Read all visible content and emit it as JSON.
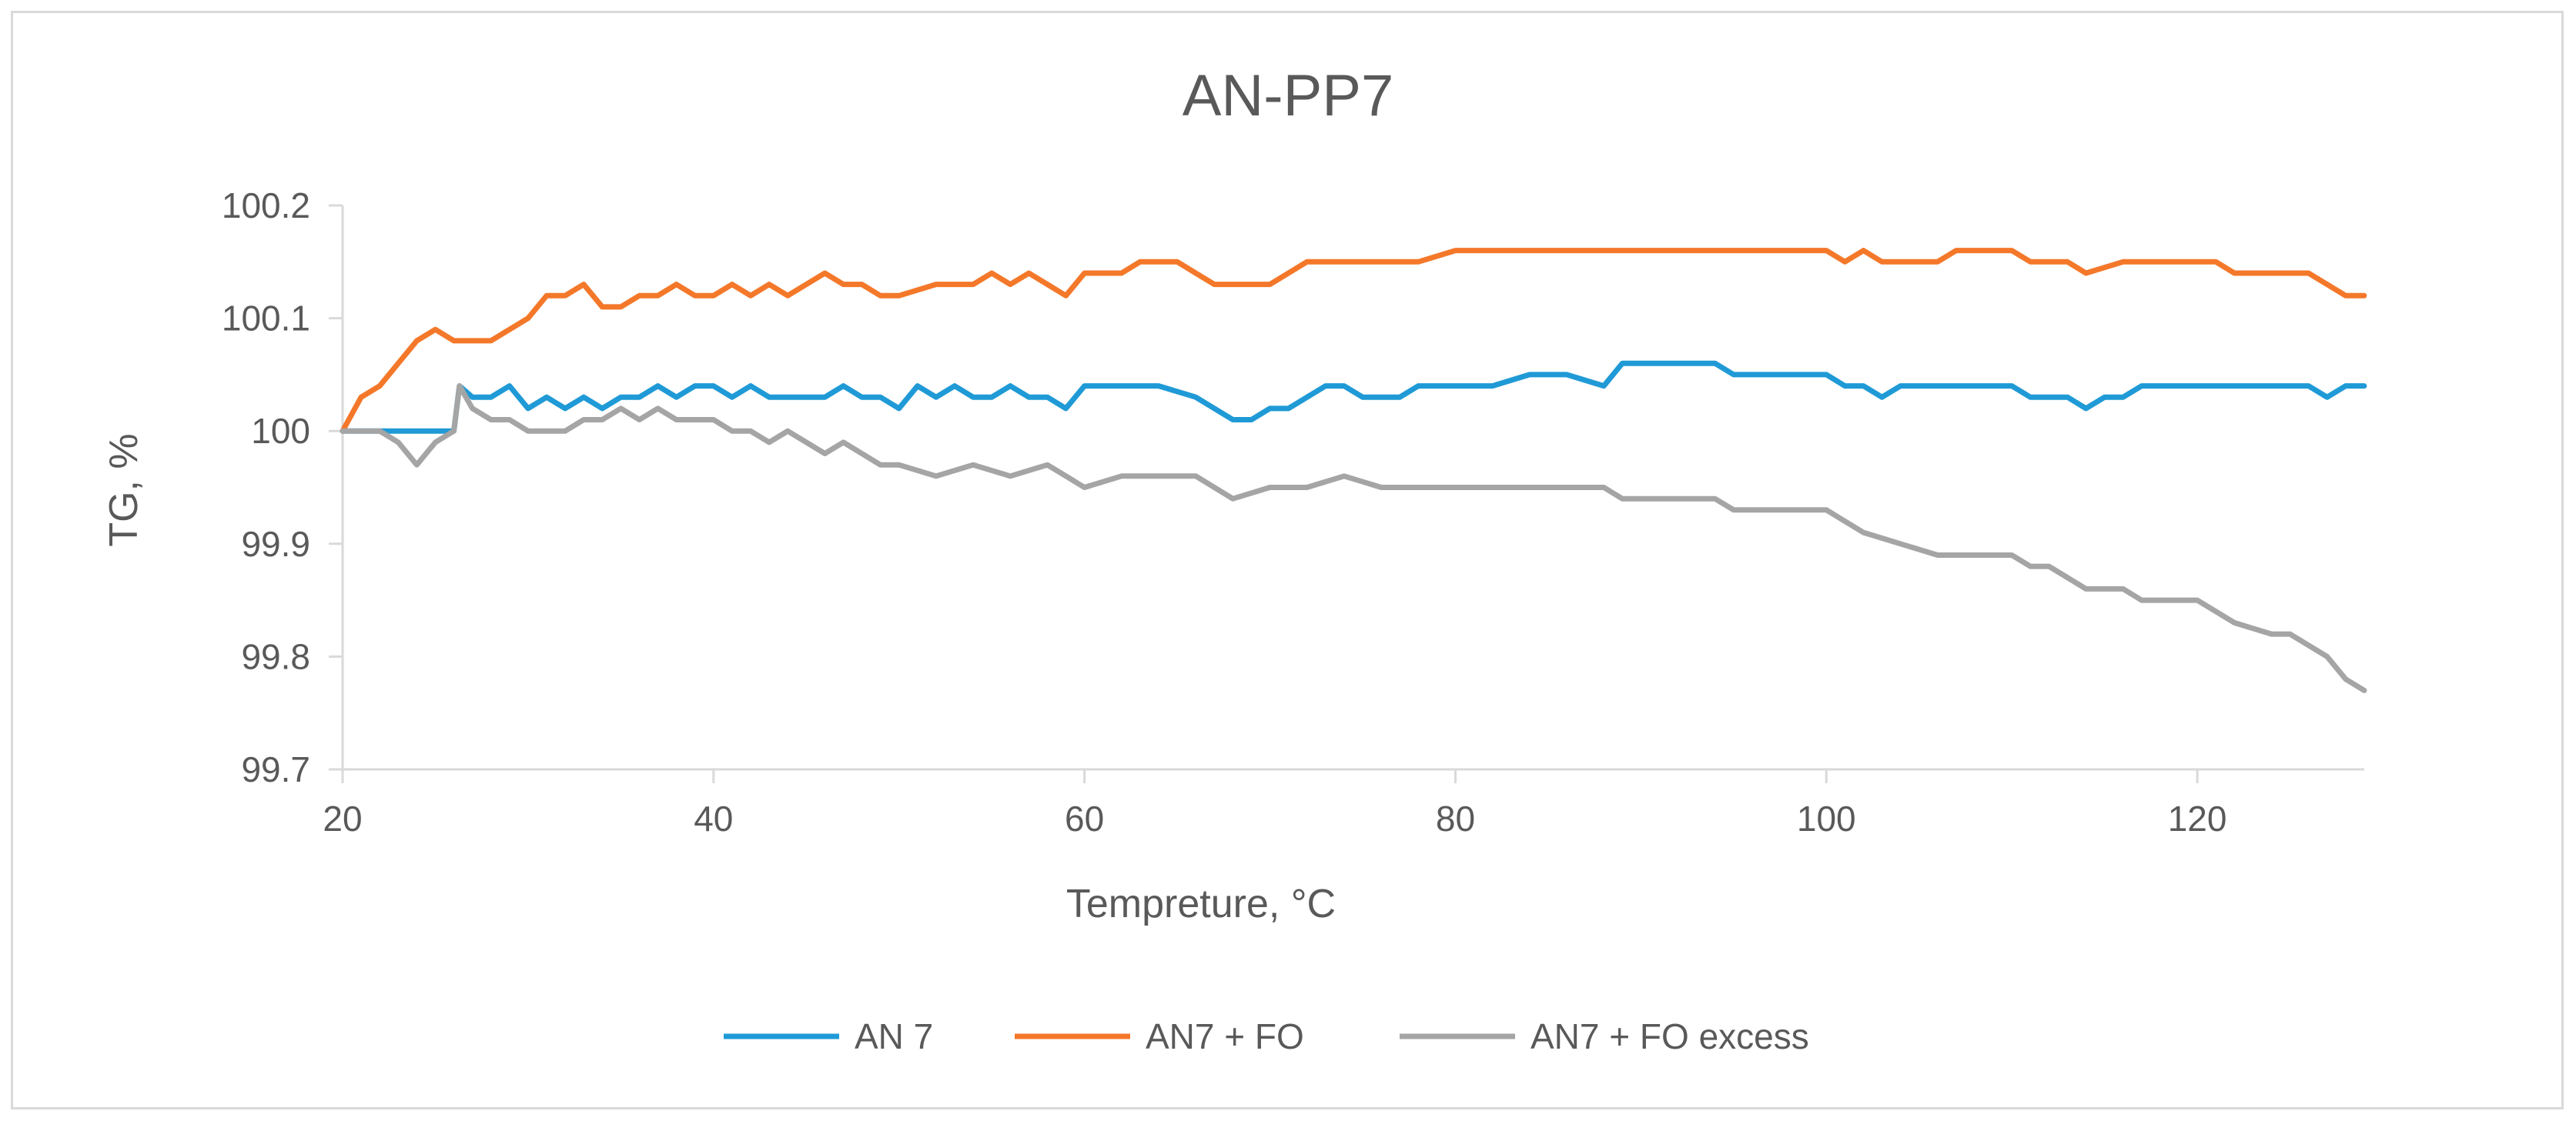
{
  "chart_data": {
    "type": "line",
    "title": "AN-PP7",
    "xlabel": "Tempreture, °C",
    "ylabel": "TG, %",
    "xlim": [
      20,
      130
    ],
    "ylim": [
      99.7,
      100.2
    ],
    "x_ticks": [
      20,
      40,
      60,
      80,
      100,
      120
    ],
    "x_tick_labels": [
      "20",
      "40",
      "60",
      "80",
      "100",
      "120"
    ],
    "y_ticks": [
      99.7,
      99.8,
      99.9,
      100,
      100.1,
      100.2
    ],
    "y_tick_labels": [
      "99.7",
      "99.8",
      "99.9",
      "100",
      "100.1",
      "100.2"
    ],
    "grid": "none",
    "legend_position": "bottom",
    "series": [
      {
        "name": "AN 7",
        "color": "#1f9ad6",
        "x": [
          20,
          22,
          23,
          24,
          25,
          26,
          26.3,
          27,
          28,
          29,
          30,
          31,
          32,
          33,
          34,
          35,
          36,
          37,
          38,
          39,
          40,
          41,
          42,
          43,
          44,
          45,
          46,
          47,
          48,
          49,
          50,
          51,
          52,
          53,
          54,
          55,
          56,
          57,
          58,
          59,
          60,
          62,
          64,
          66,
          67,
          68,
          69,
          70,
          71,
          72,
          73,
          74,
          75,
          76,
          77,
          78,
          79,
          80,
          82,
          84,
          86,
          88,
          89,
          90,
          92,
          94,
          95,
          97,
          99,
          100,
          101,
          102,
          103,
          104,
          106,
          108,
          110,
          111,
          112,
          113,
          114,
          115,
          116,
          117,
          118,
          120,
          121,
          122,
          124,
          126,
          127,
          128,
          129
        ],
        "values": [
          100,
          100,
          100,
          100,
          100,
          100,
          100.04,
          100.03,
          100.03,
          100.04,
          100.02,
          100.03,
          100.02,
          100.03,
          100.02,
          100.03,
          100.03,
          100.04,
          100.03,
          100.04,
          100.04,
          100.03,
          100.04,
          100.03,
          100.03,
          100.03,
          100.03,
          100.04,
          100.03,
          100.03,
          100.02,
          100.04,
          100.03,
          100.04,
          100.03,
          100.03,
          100.04,
          100.03,
          100.03,
          100.02,
          100.04,
          100.04,
          100.04,
          100.03,
          100.02,
          100.01,
          100.01,
          100.02,
          100.02,
          100.03,
          100.04,
          100.04,
          100.03,
          100.03,
          100.03,
          100.04,
          100.04,
          100.04,
          100.04,
          100.05,
          100.05,
          100.04,
          100.06,
          100.06,
          100.06,
          100.06,
          100.05,
          100.05,
          100.05,
          100.05,
          100.04,
          100.04,
          100.03,
          100.04,
          100.04,
          100.04,
          100.04,
          100.03,
          100.03,
          100.03,
          100.02,
          100.03,
          100.03,
          100.04,
          100.04,
          100.04,
          100.04,
          100.04,
          100.04,
          100.04,
          100.03,
          100.04,
          100.04
        ]
      },
      {
        "name": "AN7 + FO",
        "color": "#f4782a",
        "x": [
          20,
          21,
          22,
          23,
          24,
          25,
          26,
          27,
          28,
          29,
          30,
          31,
          32,
          33,
          34,
          35,
          36,
          37,
          38,
          39,
          40,
          41,
          42,
          43,
          44,
          45,
          46,
          47,
          48,
          49,
          50,
          52,
          54,
          55,
          56,
          57,
          58,
          59,
          60,
          62,
          63,
          64,
          65,
          66,
          67,
          68,
          70,
          72,
          74,
          76,
          78,
          80,
          84,
          88,
          89,
          92,
          96,
          100,
          101,
          102,
          103,
          104,
          106,
          107,
          108,
          110,
          111,
          112,
          113,
          114,
          116,
          118,
          120,
          121,
          122,
          124,
          126,
          127,
          128,
          129
        ],
        "values": [
          100,
          100.03,
          100.04,
          100.06,
          100.08,
          100.09,
          100.08,
          100.08,
          100.08,
          100.09,
          100.1,
          100.12,
          100.12,
          100.13,
          100.11,
          100.11,
          100.12,
          100.12,
          100.13,
          100.12,
          100.12,
          100.13,
          100.12,
          100.13,
          100.12,
          100.13,
          100.14,
          100.13,
          100.13,
          100.12,
          100.12,
          100.13,
          100.13,
          100.14,
          100.13,
          100.14,
          100.13,
          100.12,
          100.14,
          100.14,
          100.15,
          100.15,
          100.15,
          100.14,
          100.13,
          100.13,
          100.13,
          100.15,
          100.15,
          100.15,
          100.15,
          100.16,
          100.16,
          100.16,
          100.16,
          100.16,
          100.16,
          100.16,
          100.15,
          100.16,
          100.15,
          100.15,
          100.15,
          100.16,
          100.16,
          100.16,
          100.15,
          100.15,
          100.15,
          100.14,
          100.15,
          100.15,
          100.15,
          100.15,
          100.14,
          100.14,
          100.14,
          100.13,
          100.12,
          100.12
        ]
      },
      {
        "name": "AN7 + FO excess",
        "color": "#a5a5a5",
        "x": [
          20,
          22,
          23,
          24,
          25,
          26,
          26.3,
          27,
          28,
          29,
          30,
          31,
          32,
          33,
          34,
          35,
          36,
          37,
          38,
          39,
          40,
          41,
          42,
          43,
          44,
          45,
          46,
          47,
          48,
          49,
          50,
          52,
          54,
          56,
          58,
          59,
          60,
          62,
          64,
          66,
          67,
          68,
          70,
          72,
          74,
          76,
          78,
          80,
          84,
          88,
          89,
          92,
          94,
          95,
          98,
          100,
          101,
          102,
          104,
          106,
          108,
          110,
          111,
          112,
          113,
          114,
          116,
          117,
          118,
          120,
          121,
          122,
          124,
          125,
          126,
          127,
          128,
          129
        ],
        "values": [
          100,
          100,
          99.99,
          99.97,
          99.99,
          100,
          100.04,
          100.02,
          100.01,
          100.01,
          100,
          100,
          100,
          100.01,
          100.01,
          100.02,
          100.01,
          100.02,
          100.01,
          100.01,
          100.01,
          100,
          100,
          99.99,
          100,
          99.99,
          99.98,
          99.99,
          99.98,
          99.97,
          99.97,
          99.96,
          99.97,
          99.96,
          99.97,
          99.96,
          99.95,
          99.96,
          99.96,
          99.96,
          99.95,
          99.94,
          99.95,
          99.95,
          99.96,
          99.95,
          99.95,
          99.95,
          99.95,
          99.95,
          99.94,
          99.94,
          99.94,
          99.93,
          99.93,
          99.93,
          99.92,
          99.91,
          99.9,
          99.89,
          99.89,
          99.89,
          99.88,
          99.88,
          99.87,
          99.86,
          99.86,
          99.85,
          99.85,
          99.85,
          99.84,
          99.83,
          99.82,
          99.82,
          99.81,
          99.8,
          99.78,
          99.77
        ]
      }
    ]
  }
}
